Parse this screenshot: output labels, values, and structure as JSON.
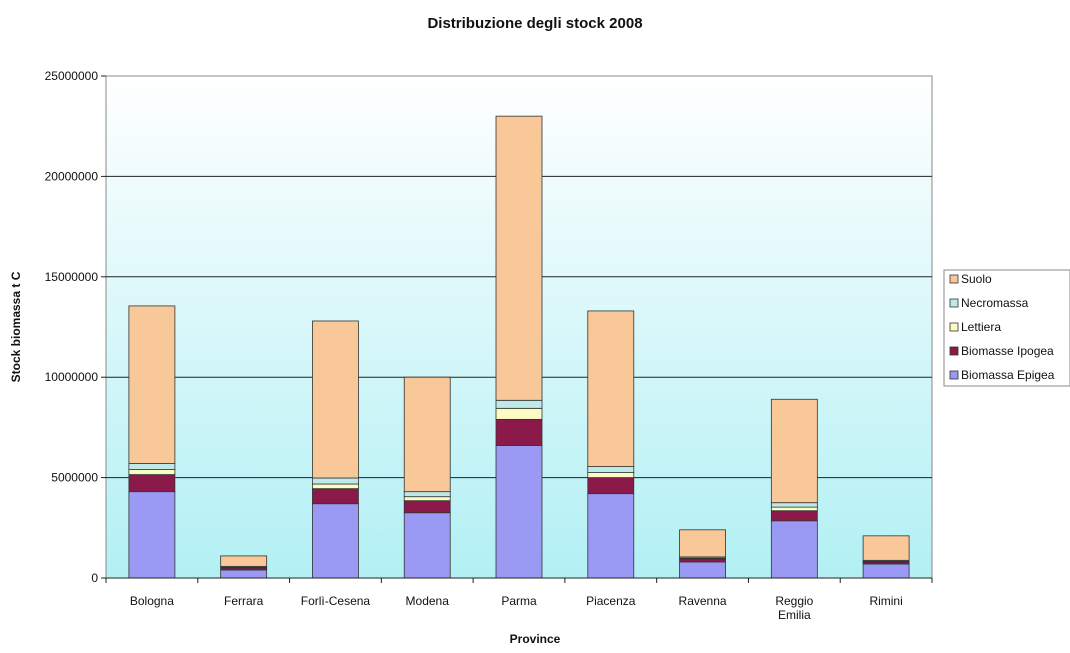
{
  "chart_data": {
    "type": "bar",
    "stacked": true,
    "title": "Distribuzione degli stock 2008",
    "xlabel": "Province",
    "ylabel": "Stock biomassa t C",
    "ylim": [
      0,
      25000000
    ],
    "yticks": [
      "0",
      "5000000",
      "10000000",
      "15000000",
      "20000000",
      "25000000"
    ],
    "categories": [
      [
        "Bologna"
      ],
      [
        "Ferrara"
      ],
      [
        "Forlì-Cesena"
      ],
      [
        "Modena"
      ],
      [
        "Parma"
      ],
      [
        "Piacenza"
      ],
      [
        "Ravenna"
      ],
      [
        "Reggio",
        "Emilia"
      ],
      [
        "Rimini"
      ]
    ],
    "series": [
      {
        "name": "Biomassa Epigea",
        "color": "#9a9af4",
        "values": [
          4300000,
          400000,
          3700000,
          3250000,
          6600000,
          4200000,
          800000,
          2850000,
          700000
        ]
      },
      {
        "name": "Biomasse Ipogea",
        "color": "#8b1a4a",
        "values": [
          850000,
          100000,
          750000,
          600000,
          1300000,
          800000,
          150000,
          500000,
          100000
        ]
      },
      {
        "name": "Lettiera",
        "color": "#fbfbc4",
        "values": [
          250000,
          30000,
          230000,
          200000,
          550000,
          250000,
          40000,
          180000,
          30000
        ]
      },
      {
        "name": "Necromassa",
        "color": "#bfe8e8",
        "values": [
          300000,
          50000,
          300000,
          250000,
          400000,
          300000,
          60000,
          220000,
          50000
        ]
      },
      {
        "name": "Suolo",
        "color": "#f8c898",
        "values": [
          7850000,
          520000,
          7820000,
          5700000,
          14150000,
          7750000,
          1350000,
          5150000,
          1220000
        ]
      }
    ],
    "legend": {
      "position": "right",
      "order": [
        "Suolo",
        "Necromassa",
        "Lettiera",
        "Biomasse Ipogea",
        "Biomassa Epigea"
      ]
    },
    "grid": true,
    "plot_background": "gradient white to light cyan"
  }
}
